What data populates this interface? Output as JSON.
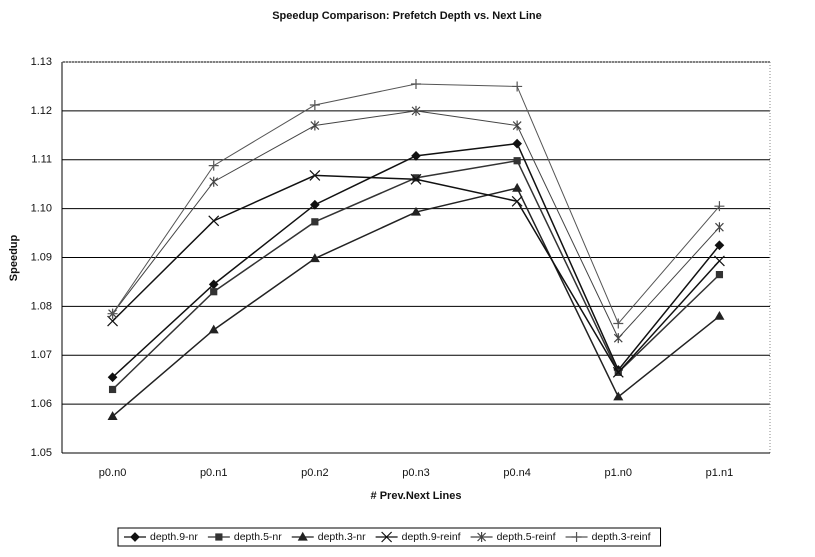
{
  "chart_data": {
    "type": "line",
    "title": "Speedup Comparison: Prefetch Depth vs. Next Line",
    "x_label": "# Prev.Next Lines",
    "y_label": "Speedup",
    "categories": [
      "p0.n0",
      "p0.n1",
      "p0.n2",
      "p0.n3",
      "p0.n4",
      "p1.n0",
      "p1.n1"
    ],
    "ylim": [
      1.05,
      1.13
    ],
    "yticks": [
      1.05,
      1.06,
      1.07,
      1.08,
      1.09,
      {
        "value": 1.1,
        "label": "1.10"
      },
      1.11,
      1.12,
      1.13
    ],
    "grid": true,
    "legend": "bottom",
    "series": [
      {
        "name": "depth.9-nr",
        "color": "#111111",
        "marker": "diamond",
        "values": [
          1.0655,
          1.0845,
          1.1008,
          1.1108,
          1.1133,
          1.067,
          1.0925
        ]
      },
      {
        "name": "depth.5-nr",
        "color": "#333333",
        "marker": "square",
        "values": [
          1.063,
          1.083,
          1.0973,
          1.1063,
          1.1098,
          1.0665,
          1.0865
        ]
      },
      {
        "name": "depth.3-nr",
        "color": "#222222",
        "marker": "triangle",
        "values": [
          1.0575,
          1.0752,
          1.0898,
          1.0993,
          1.1042,
          1.0615,
          1.078
        ]
      },
      {
        "name": "depth.9-reinf",
        "color": "#111111",
        "marker": "x",
        "values": [
          1.077,
          1.0975,
          1.1068,
          1.106,
          1.1015,
          1.0665,
          1.0893
        ]
      },
      {
        "name": "depth.5-reinf",
        "color": "#444444",
        "marker": "asterisk",
        "values": [
          1.0785,
          1.1055,
          1.117,
          1.12,
          1.117,
          1.0735,
          1.0962
        ]
      },
      {
        "name": "depth.3-reinf",
        "color": "#555555",
        "marker": "plus",
        "values": [
          1.0785,
          1.1088,
          1.1212,
          1.1255,
          1.125,
          1.0765,
          1.1005
        ]
      }
    ]
  }
}
